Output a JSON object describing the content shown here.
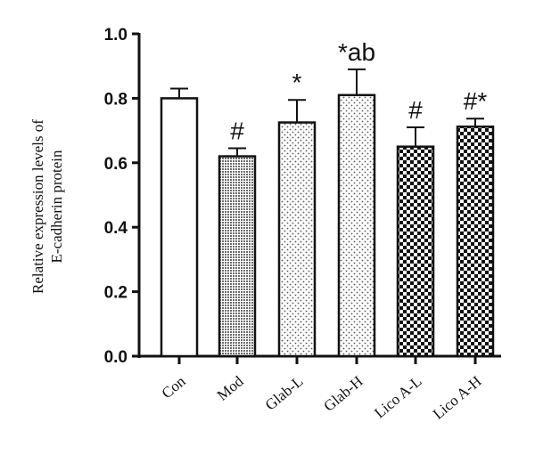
{
  "chart_data": {
    "type": "bar",
    "title": "",
    "xlabel": "",
    "ylabel_lines": [
      "Relative expression levels of",
      "E-cadherin protein"
    ],
    "ylim": [
      0,
      1.0
    ],
    "yticks": [
      "0.0",
      "0.2",
      "0.4",
      "0.6",
      "0.8",
      "1.0"
    ],
    "categories": [
      "Con",
      "Mod",
      "Glab-L",
      "Glab-H",
      "Lico A-L",
      "Lico A-H"
    ],
    "values": [
      0.8,
      0.62,
      0.725,
      0.81,
      0.65,
      0.712
    ],
    "errors": [
      0.03,
      0.025,
      0.07,
      0.08,
      0.06,
      0.025
    ],
    "significance": [
      "",
      "#",
      "*",
      "*ab",
      "#",
      "#*"
    ],
    "fills": [
      "solid-white",
      "dense-gray",
      "dotted",
      "dotted",
      "checkered",
      "checkered"
    ],
    "grid": false,
    "legend": "none"
  }
}
